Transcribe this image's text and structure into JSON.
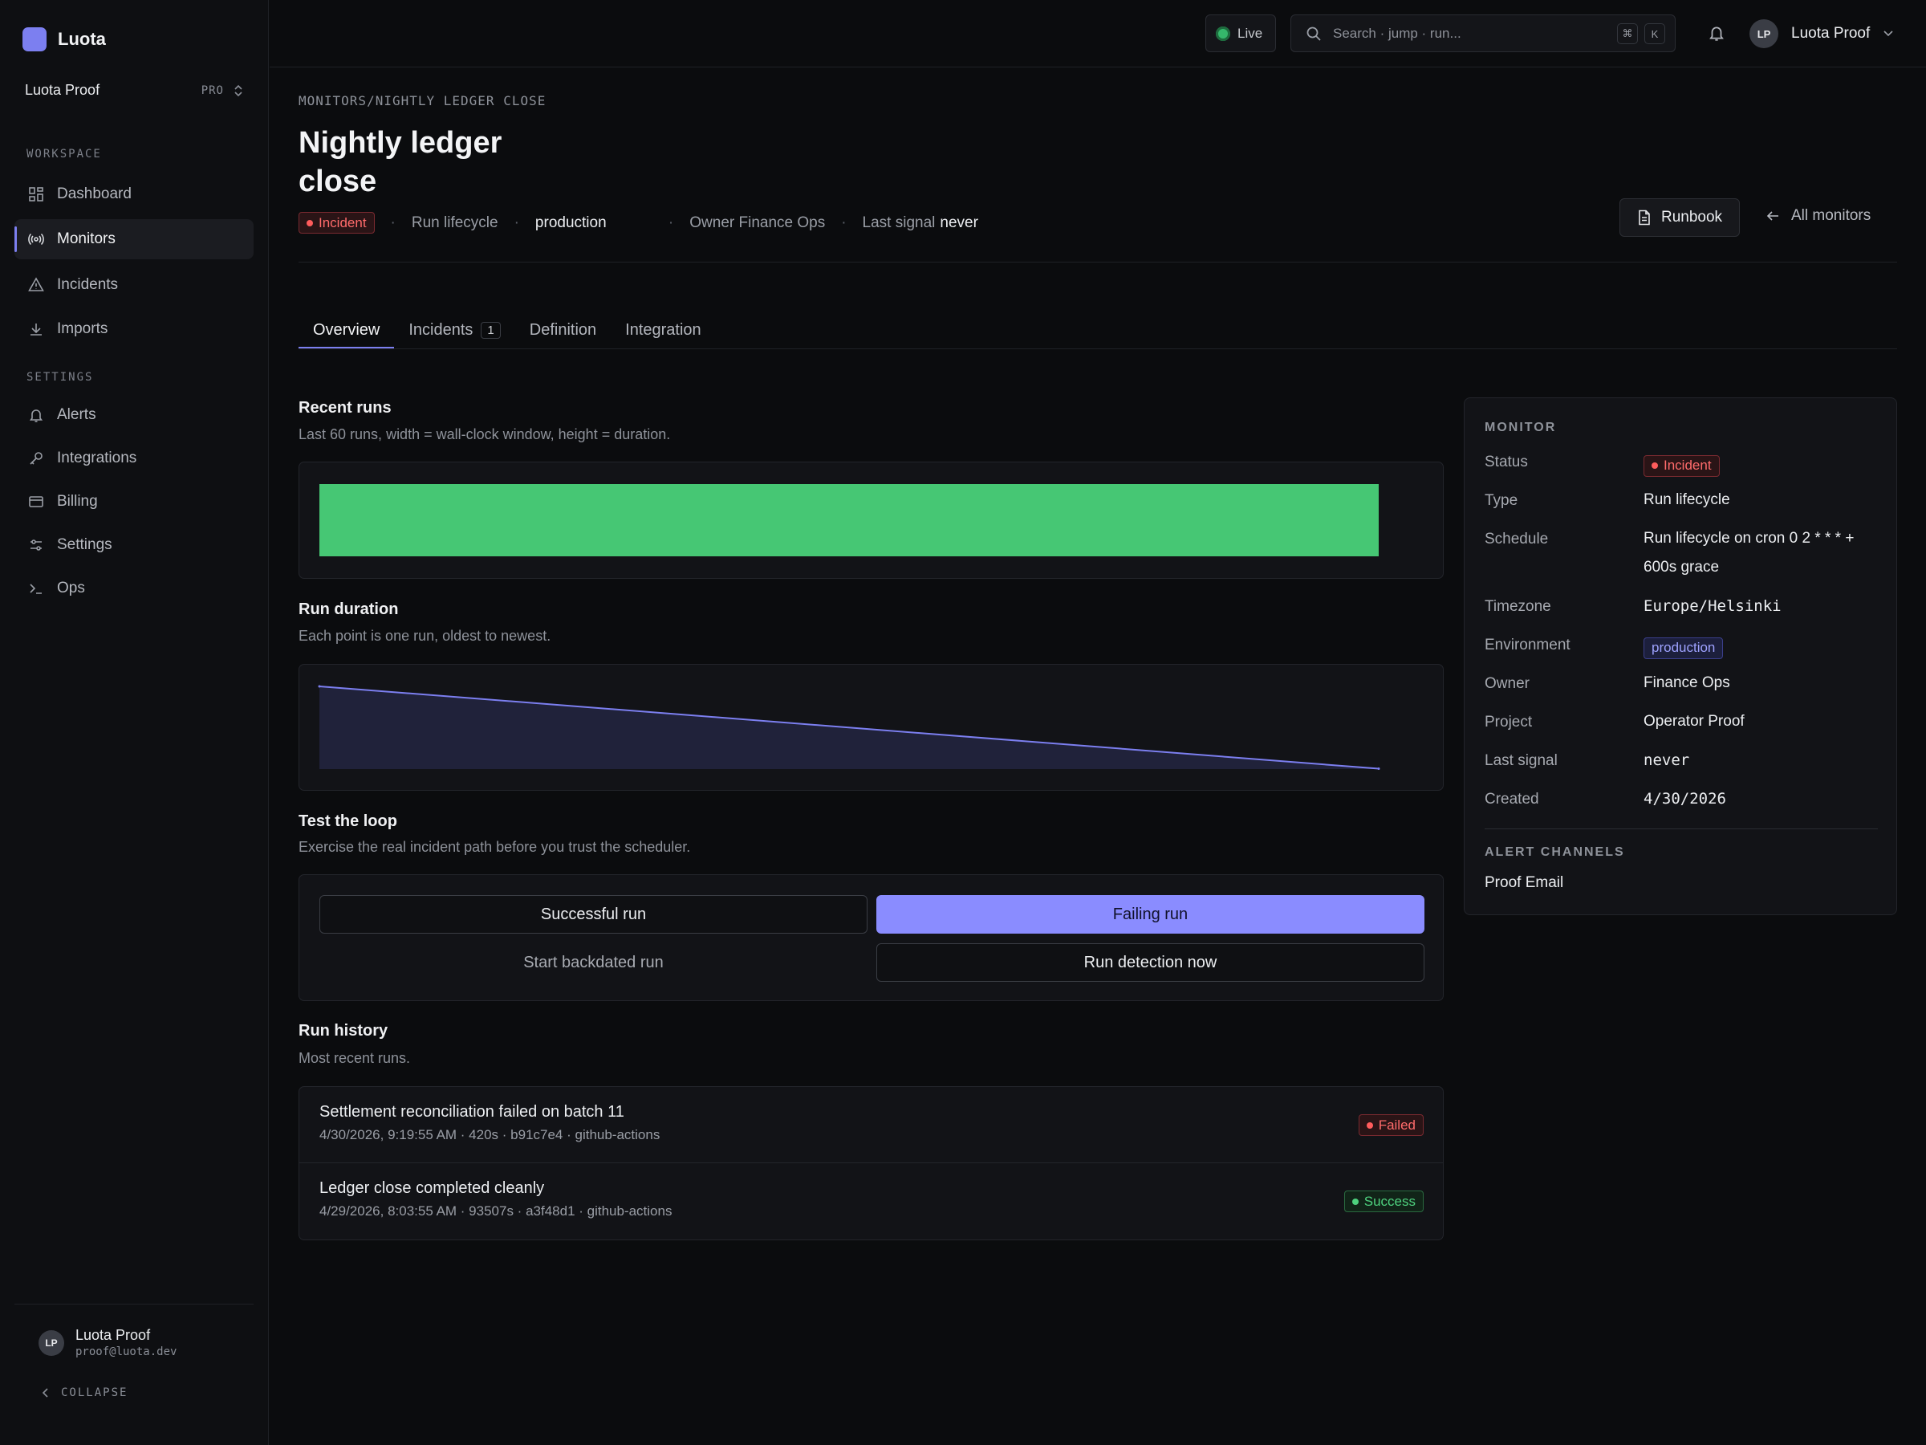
{
  "app": {
    "name": "Luota"
  },
  "org": {
    "name": "Luota Proof",
    "plan": "PRO"
  },
  "sidebar": {
    "workspace_label": "WORKSPACE",
    "settings_label": "SETTINGS",
    "workspace_items": [
      {
        "label": "Dashboard",
        "icon": "dashboard-icon"
      },
      {
        "label": "Monitors",
        "icon": "broadcast-icon",
        "active": true
      },
      {
        "label": "Incidents",
        "icon": "warning-icon"
      },
      {
        "label": "Imports",
        "icon": "download-icon"
      }
    ],
    "settings_items": [
      {
        "label": "Alerts",
        "icon": "bell-icon"
      },
      {
        "label": "Integrations",
        "icon": "key-icon"
      },
      {
        "label": "Billing",
        "icon": "card-icon"
      },
      {
        "label": "Settings",
        "icon": "sliders-icon"
      },
      {
        "label": "Ops",
        "icon": "terminal-icon"
      }
    ],
    "user": {
      "initials": "LP",
      "name": "Luota Proof",
      "email": "proof@luota.dev"
    },
    "collapse_label": "COLLAPSE"
  },
  "topbar": {
    "live_label": "Live",
    "search_placeholder": "Search · jump · run...",
    "kbd": [
      "⌘",
      "K"
    ],
    "user": {
      "initials": "LP",
      "name": "Luota Proof"
    }
  },
  "page": {
    "breadcrumb": "MONITORS/NIGHTLY LEDGER CLOSE",
    "title": "Nightly ledger close",
    "status_badge": "Incident",
    "type": "Run lifecycle",
    "environment": "production",
    "owner_text": "Owner Finance Ops",
    "last_signal_label": "Last signal",
    "last_signal_value": "never",
    "runbook_label": "Runbook",
    "all_monitors_label": "All monitors"
  },
  "tabs": [
    {
      "label": "Overview",
      "active": true
    },
    {
      "label": "Incidents",
      "count": "1"
    },
    {
      "label": "Definition"
    },
    {
      "label": "Integration"
    }
  ],
  "recent_runs": {
    "title": "Recent runs",
    "subtitle": "Last 60 runs, width = wall-clock window, height = duration.",
    "bar_color": "#46c774",
    "fill_fraction": 1.0
  },
  "run_duration": {
    "title": "Run duration",
    "subtitle": "Each point is one run, oldest to newest."
  },
  "chart_data": {
    "type": "area",
    "series": [
      {
        "values": [
          93507,
          420
        ]
      }
    ],
    "x": [
      "4/29/2026, 8:03:55 AM",
      "4/30/2026, 9:19:55 AM"
    ],
    "line_color": "#7c7ff0",
    "fill_color": "#20223a"
  },
  "test_loop": {
    "title": "Test the loop",
    "subtitle": "Exercise the real incident path before you trust the scheduler.",
    "successful_run": "Successful run",
    "failing_run": "Failing run",
    "backdated_run": "Start backdated run",
    "run_detection": "Run detection now"
  },
  "run_history": {
    "title": "Run history",
    "subtitle": "Most recent runs.",
    "rows": [
      {
        "title": "Settlement reconciliation failed on batch 11",
        "meta": "4/30/2026, 9:19:55 AM · 420s · b91c7e4 · github-actions",
        "status": "Failed",
        "status_kind": "incident"
      },
      {
        "title": "Ledger close completed cleanly",
        "meta": "4/29/2026, 8:03:55 AM · 93507s · a3f48d1 · github-actions",
        "status": "Success",
        "status_kind": "success"
      }
    ]
  },
  "monitor_panel": {
    "label": "MONITOR",
    "fields": [
      {
        "k": "Status",
        "v": "Incident"
      },
      {
        "k": "Type",
        "v": "Run lifecycle"
      },
      {
        "k": "Schedule",
        "v": "Run lifecycle on cron 0 2 * * * + 600s grace"
      },
      {
        "k": "Timezone",
        "v": "Europe/Helsinki"
      },
      {
        "k": "Environment",
        "v": "production"
      },
      {
        "k": "Owner",
        "v": "Finance Ops"
      },
      {
        "k": "Project",
        "v": "Operator Proof"
      },
      {
        "k": "Last signal",
        "v": "never"
      },
      {
        "k": "Created",
        "v": "4/30/2026"
      }
    ],
    "alert_label": "ALERT CHANNELS",
    "alert_channel": "Proof Email"
  },
  "colors": {
    "accent": "#7c7ff0",
    "incident": "#ff5c5c",
    "success": "#4ed17e"
  }
}
